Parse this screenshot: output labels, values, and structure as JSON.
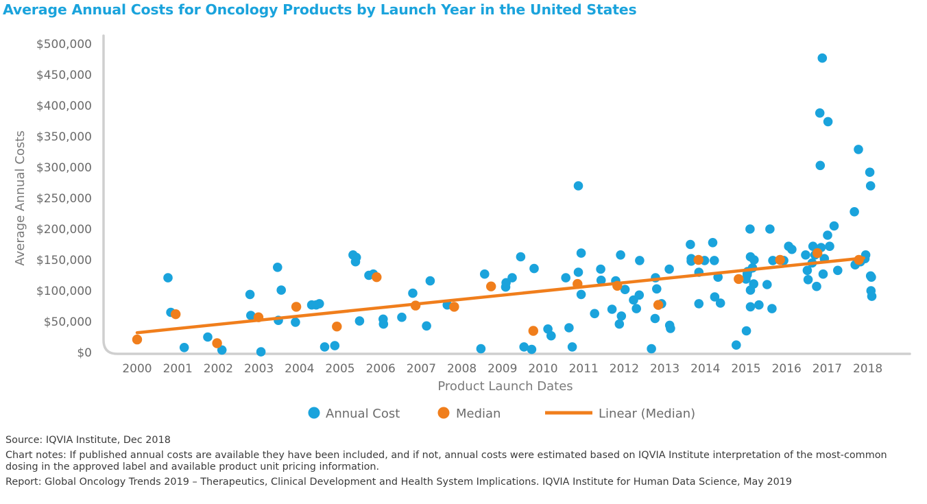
{
  "chart_data": {
    "type": "scatter",
    "title": "Average Annual Costs for Oncology Products by Launch Year in the United States",
    "xlabel": "Product Launch Dates",
    "ylabel": "Average Annual Costs",
    "x_ticks": [
      "2000",
      "2001",
      "2002",
      "2003",
      "2004",
      "2005",
      "2006",
      "2007",
      "2008",
      "2009",
      "2010",
      "2011",
      "2012",
      "2013",
      "2014",
      "2015",
      "2016",
      "2017",
      "2018"
    ],
    "y_ticks": [
      "$0",
      "$50,000",
      "$100,000",
      "$150,000",
      "$200,000",
      "$250,000",
      "$300,000",
      "$350,000",
      "$400,000",
      "$450,000",
      "$500,000"
    ],
    "xlim": [
      1999.6,
      2018.4
    ],
    "ylim": [
      0,
      500000
    ],
    "grid": false,
    "legend": [
      {
        "label": "Annual Cost",
        "marker": "circle",
        "color": "#1aa3dc"
      },
      {
        "label": "Median",
        "marker": "circle",
        "color": "#f07e1c"
      },
      {
        "label": "Linear (Median)",
        "marker": "line",
        "color": "#f07e1c"
      }
    ],
    "series": [
      {
        "name": "Annual Cost",
        "type": "scatter",
        "color": "#1aa3dc",
        "x": [
          2000.76,
          2000.83,
          2001.16,
          2001.74,
          2002.09,
          2002.78,
          2002.8,
          2003.05,
          2003.46,
          2003.48,
          2003.55,
          2003.9,
          2004.3,
          2004.41,
          2004.49,
          2004.62,
          2004.87,
          2005.32,
          2005.38,
          2005.4,
          2005.48,
          2005.71,
          2005.82,
          2006.06,
          2006.07,
          2006.52,
          2006.79,
          2007.13,
          2007.22,
          2007.64,
          2008.47,
          2008.56,
          2009.08,
          2009.09,
          2009.24,
          2009.45,
          2009.53,
          2009.72,
          2009.78,
          2010.12,
          2010.2,
          2010.56,
          2010.64,
          2010.72,
          2010.87,
          2010.87,
          2010.94,
          2010.94,
          2011.27,
          2011.42,
          2011.43,
          2011.7,
          2011.79,
          2011.88,
          2011.91,
          2011.93,
          2012.02,
          2012.23,
          2012.3,
          2012.37,
          2012.38,
          2012.67,
          2012.76,
          2012.77,
          2012.8,
          2012.92,
          2013.11,
          2013.12,
          2013.14,
          2013.63,
          2013.65,
          2013.65,
          2013.84,
          2013.84,
          2013.98,
          2014.18,
          2014.22,
          2014.23,
          2014.31,
          2014.37,
          2014.76,
          2015.0,
          2015.01,
          2015.03,
          2015.03,
          2015.04,
          2015.1,
          2015.11,
          2015.11,
          2015.11,
          2015.16,
          2015.19,
          2015.2,
          2015.32,
          2015.52,
          2015.59,
          2015.64,
          2015.66,
          2015.93,
          2016.05,
          2016.13,
          2016.47,
          2016.51,
          2016.53,
          2016.63,
          2016.65,
          2016.7,
          2016.74,
          2016.82,
          2016.83,
          2016.85,
          2016.88,
          2016.9,
          2016.93,
          2017.01,
          2017.02,
          2017.06,
          2017.17,
          2017.26,
          2017.67,
          2017.69,
          2017.77,
          2017.82,
          2017.93,
          2017.95,
          2018.05,
          2018.07,
          2018.07,
          2018.08,
          2018.09,
          2018.1
        ],
        "y": [
          121000,
          65000,
          8000,
          25000,
          4000,
          94000,
          60000,
          1000,
          138000,
          52000,
          101000,
          49000,
          77000,
          77000,
          79000,
          9000,
          11000,
          158000,
          147000,
          154000,
          51000,
          125000,
          127000,
          54000,
          46000,
          57000,
          96000,
          43000,
          116000,
          77000,
          6000,
          127000,
          106000,
          113000,
          121000,
          155000,
          9000,
          5000,
          136000,
          38000,
          27000,
          121000,
          40000,
          9000,
          270000,
          130000,
          161000,
          94000,
          63000,
          135000,
          117000,
          70000,
          116000,
          46000,
          158000,
          59000,
          102000,
          85000,
          71000,
          93000,
          149000,
          6000,
          55000,
          121000,
          103000,
          79000,
          135000,
          44000,
          39000,
          175000,
          152000,
          148000,
          79000,
          130000,
          149000,
          178000,
          149000,
          90000,
          122000,
          80000,
          12000,
          119000,
          35000,
          126000,
          128000,
          131000,
          200000,
          101000,
          74000,
          155000,
          137000,
          111000,
          150000,
          77000,
          110000,
          200000,
          71000,
          149000,
          149000,
          172000,
          167000,
          158000,
          133000,
          118000,
          145000,
          172000,
          158000,
          107000,
          388000,
          303000,
          170000,
          477000,
          127000,
          152000,
          190000,
          374000,
          172000,
          205000,
          133000,
          228000,
          142000,
          329000,
          147000,
          152000,
          158000,
          292000,
          270000,
          124000,
          100000,
          122000,
          91000
        ]
      },
      {
        "name": "Median",
        "type": "scatter",
        "color": "#f07e1c",
        "x": [
          2000.0,
          2000.95,
          2001.97,
          2002.99,
          2003.92,
          2004.92,
          2005.9,
          2006.86,
          2007.81,
          2008.72,
          2009.76,
          2010.85,
          2011.83,
          2012.84,
          2013.83,
          2014.82,
          2015.84,
          2016.76,
          2017.78
        ],
        "y": [
          21000,
          62000,
          15000,
          57000,
          74000,
          42000,
          122000,
          76000,
          74000,
          107000,
          35000,
          111000,
          108000,
          77000,
          150000,
          119000,
          150000,
          161000,
          150000
        ]
      },
      {
        "name": "Linear (Median)",
        "type": "line",
        "color": "#f07e1c",
        "x": [
          2000.0,
          2017.9
        ],
        "y": [
          32000,
          153000
        ]
      }
    ]
  },
  "notes": {
    "source": "Source: IQVIA Institute, Dec 2018",
    "chart_notes": "Chart notes: If published annual costs are available they have been included, and if not, annual costs were estimated based on IQVIA Institute interpretation of the most-common dosing in the approved label and available product unit pricing information.",
    "report": "Report: Global Oncology Trends 2019 – Therapeutics, Clinical Development and Health System Implications. IQVIA Institute for Human Data Science, May 2019"
  }
}
